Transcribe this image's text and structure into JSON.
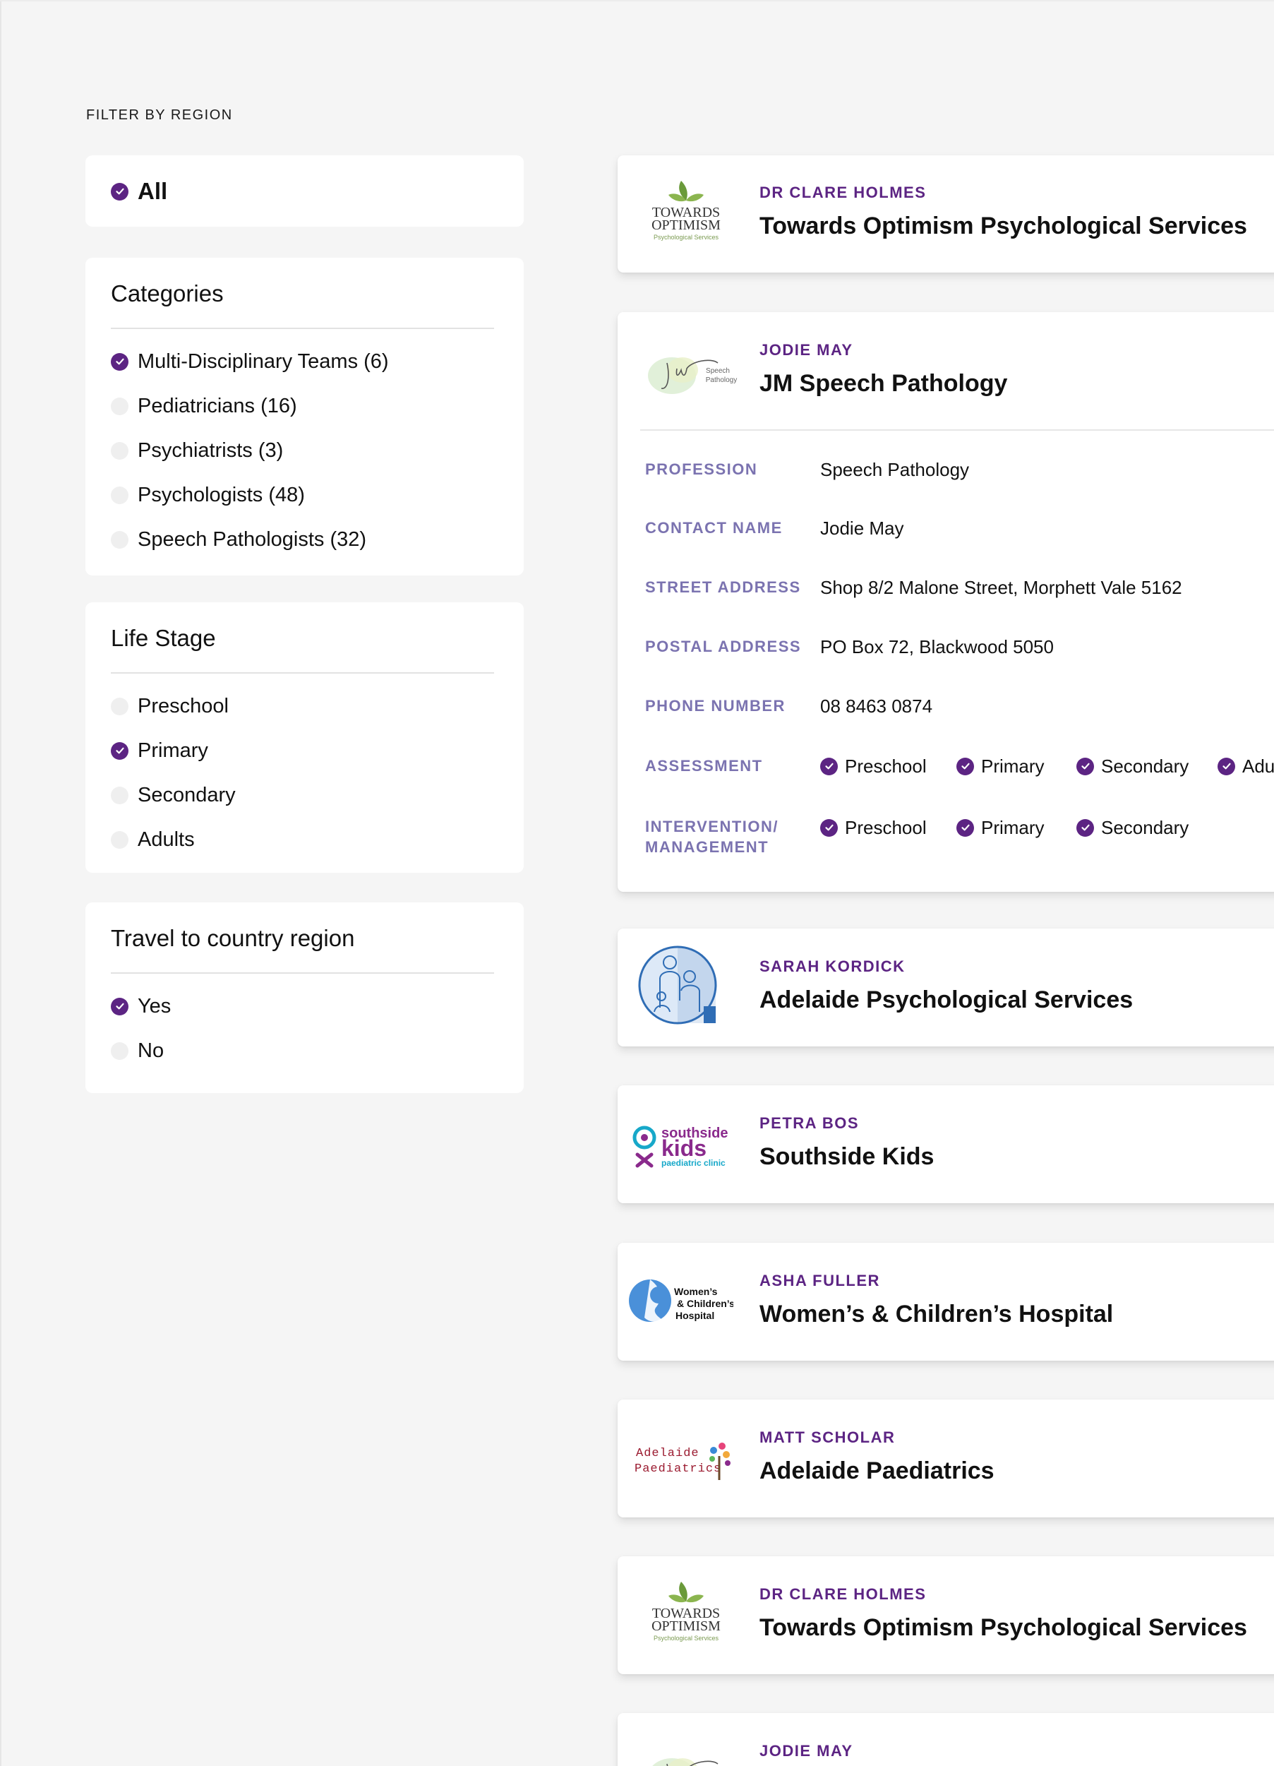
{
  "filter_heading": "FILTER BY REGION",
  "all_option": {
    "label": "All",
    "selected": true
  },
  "categories": {
    "title": "Categories",
    "options": [
      {
        "label": "Multi-Disciplinary Teams (6)",
        "selected": true
      },
      {
        "label": "Pediatricians (16)",
        "selected": false
      },
      {
        "label": "Psychiatrists (3)",
        "selected": false
      },
      {
        "label": "Psychologists (48)",
        "selected": false
      },
      {
        "label": "Speech Pathologists (32)",
        "selected": false
      }
    ]
  },
  "life_stage": {
    "title": "Life Stage",
    "options": [
      {
        "label": "Preschool",
        "selected": false
      },
      {
        "label": "Primary",
        "selected": true
      },
      {
        "label": "Secondary",
        "selected": false
      },
      {
        "label": "Adults",
        "selected": false
      }
    ]
  },
  "travel": {
    "title": "Travel to country region",
    "options": [
      {
        "label": "Yes",
        "selected": true
      },
      {
        "label": "No",
        "selected": false
      }
    ]
  },
  "cards": [
    {
      "contact": "DR CLARE HOLMES",
      "org": "Towards Optimism Psychological Services",
      "logo": "towards-optimism-logo"
    },
    {
      "contact": "JODIE MAY",
      "org": "JM Speech Pathology",
      "logo": "jm-speech-pathology-logo",
      "details": {
        "profession_label": "PROFESSION",
        "profession": "Speech Pathology",
        "contact_label": "CONTACT NAME",
        "contact_name": "Jodie May",
        "street_label": "STREET ADDRESS",
        "street": "Shop 8/2 Malone Street, Morphett Vale 5162",
        "postal_label": "POSTAL ADDRESS",
        "postal": "PO Box 72, Blackwood 5050",
        "phone_label": "PHONE NUMBER",
        "phone": "08 8463 0874",
        "assessment_label": "ASSESSMENT",
        "assessment": [
          "Preschool",
          "Primary",
          "Secondary",
          "Adul"
        ],
        "intervention_label_1": "INTERVENTION/",
        "intervention_label_2": "MANAGEMENT",
        "intervention": [
          "Preschool",
          "Primary",
          "Secondary"
        ]
      }
    },
    {
      "contact": "SARAH KORDICK",
      "org": "Adelaide Psychological Services",
      "logo": "adelaide-psychological-logo"
    },
    {
      "contact": "PETRA BOS",
      "org": "Southside Kids",
      "logo": "southside-kids-logo"
    },
    {
      "contact": "ASHA FULLER",
      "org": "Women’s & Children’s Hospital",
      "logo": "womens-childrens-logo"
    },
    {
      "contact": "MATT SCHOLAR",
      "org": "Adelaide Paediatrics",
      "logo": "adelaide-paediatrics-logo"
    },
    {
      "contact": "DR CLARE HOLMES",
      "org": "Towards Optimism Psychological Services",
      "logo": "towards-optimism-logo"
    },
    {
      "contact": "JODIE MAY",
      "org": "",
      "logo": "jm-speech-pathology-logo"
    }
  ],
  "logo_text": {
    "towards_1": "TOWARDS",
    "towards_2": "OPTIMISM",
    "towards_3": "Psychological Services",
    "jm_1": "Speech",
    "jm_2": "Pathology",
    "southside_1": "southside",
    "southside_2": "kids",
    "southside_3": "paediatric clinic",
    "wch_1": "Women’s",
    "wch_2": "& Children’s",
    "wch_3": "Hospital",
    "ap_1": "Adelaide",
    "ap_2": "Paediatrics"
  },
  "colors": {
    "accent": "#5c2483",
    "label": "#7b73b0",
    "leaf": "#6a9a3a"
  }
}
